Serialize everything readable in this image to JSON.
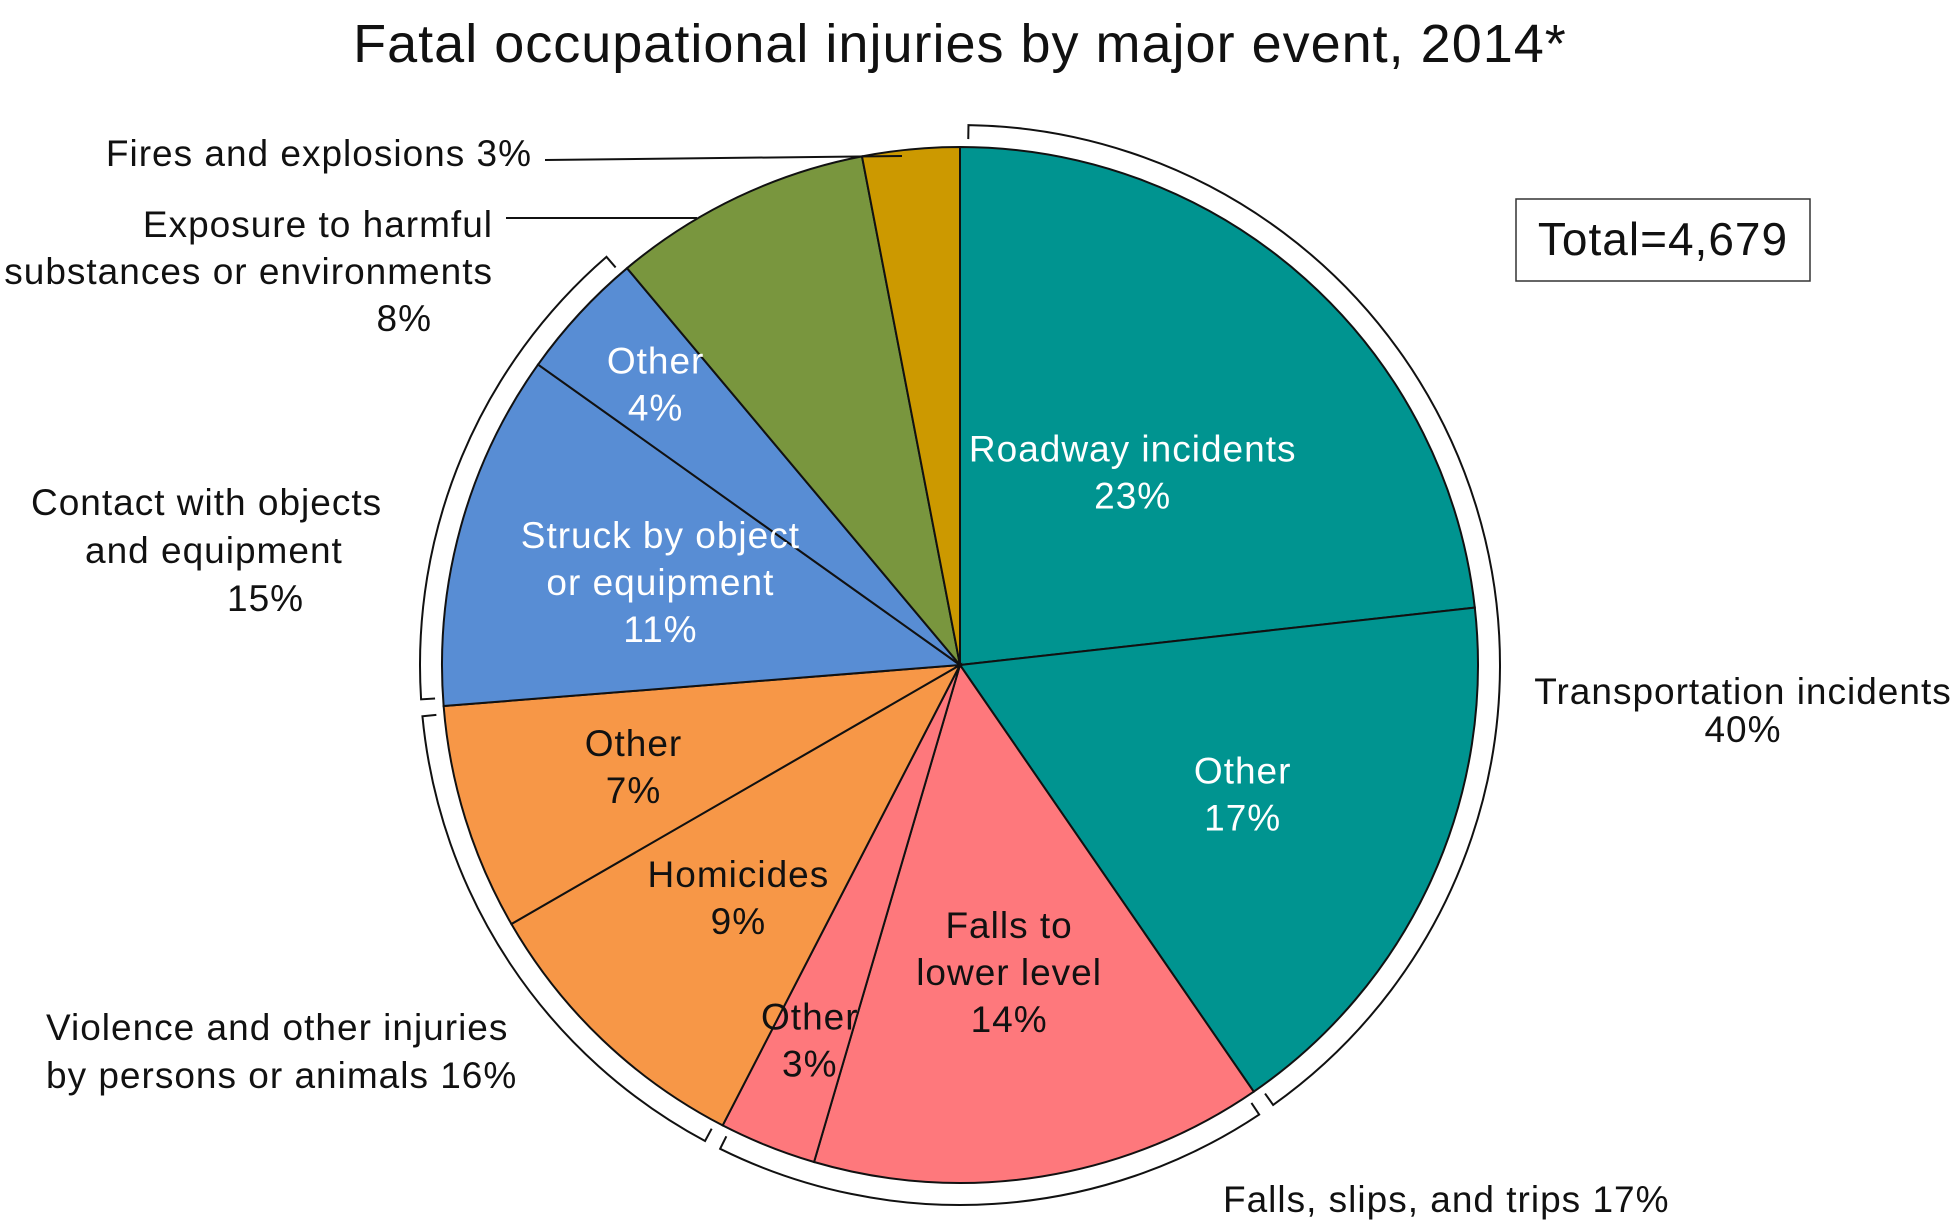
{
  "chart_data": {
    "type": "pie",
    "title": "Fatal occupational injuries by major event, 2014*",
    "total_label": "Total=4,679",
    "slices": [
      {
        "label": [
          "Roadway incidents",
          "23%"
        ],
        "value": 23,
        "color": "#009490",
        "text_color": "#ffffff",
        "group": "transportation"
      },
      {
        "label": [
          "Other",
          "17%"
        ],
        "value": 17,
        "color": "#009490",
        "text_color": "#ffffff",
        "group": "transportation"
      },
      {
        "label": [
          "Falls to",
          "lower level",
          "14%"
        ],
        "value": 14,
        "color": "#fe787c",
        "text_color": "#111111",
        "group": "falls"
      },
      {
        "label": [
          "Other",
          "3%"
        ],
        "value": 3,
        "color": "#fe787c",
        "text_color": "#111111",
        "group": "falls"
      },
      {
        "label": [
          "Homicides",
          "9%"
        ],
        "value": 9,
        "color": "#f79747",
        "text_color": "#111111",
        "group": "violence"
      },
      {
        "label": [
          "Other",
          "7%"
        ],
        "value": 7,
        "color": "#f79747",
        "text_color": "#111111",
        "group": "violence"
      },
      {
        "label": [
          "Struck by object",
          "or equipment",
          "11%"
        ],
        "value": 11,
        "color": "#588dd4",
        "text_color": "#ffffff",
        "group": "contact"
      },
      {
        "label": [
          "Other",
          "4%"
        ],
        "value": 4,
        "color": "#588dd4",
        "text_color": "#ffffff",
        "group": "contact"
      },
      {
        "label": [],
        "value": 8,
        "color": "#79963e",
        "text_color": "#111111",
        "group": "exposure"
      },
      {
        "label": [],
        "value": 3,
        "color": "#cc9900",
        "text_color": "#111111",
        "group": "fires"
      }
    ],
    "groups": [
      {
        "id": "transportation",
        "label": [
          "Transportation incidents",
          "40%"
        ],
        "bracket": true
      },
      {
        "id": "falls",
        "label": [
          "Falls, slips, and trips  17%"
        ],
        "bracket": true
      },
      {
        "id": "violence",
        "label": [
          "Violence and other injuries",
          "by persons or animals  16%"
        ],
        "bracket": true
      },
      {
        "id": "contact",
        "label": [
          "Contact with objects",
          "and equipment",
          "15%"
        ],
        "bracket": true
      },
      {
        "id": "exposure",
        "label": [
          "Exposure to harmful",
          "substances or environments",
          "8%"
        ],
        "bracket": false
      },
      {
        "id": "fires",
        "label": [
          "Fires and explosions  3%"
        ],
        "bracket": false
      }
    ]
  }
}
